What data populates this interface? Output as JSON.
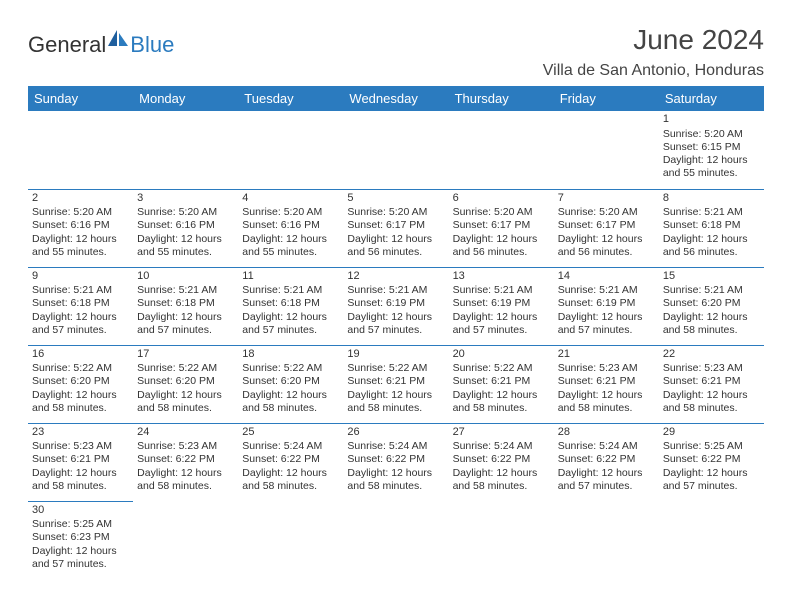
{
  "brand": {
    "part1": "General",
    "part2": "Blue"
  },
  "title": "June 2024",
  "location": "Villa de San Antonio, Honduras",
  "colors": {
    "accent": "#2b7bbf",
    "text": "#333333",
    "bg": "#ffffff"
  },
  "day_headers": [
    "Sunday",
    "Monday",
    "Tuesday",
    "Wednesday",
    "Thursday",
    "Friday",
    "Saturday"
  ],
  "weeks": [
    [
      null,
      null,
      null,
      null,
      null,
      null,
      {
        "n": "1",
        "sr": "Sunrise: 5:20 AM",
        "ss": "Sunset: 6:15 PM",
        "d1": "Daylight: 12 hours",
        "d2": "and 55 minutes."
      }
    ],
    [
      {
        "n": "2",
        "sr": "Sunrise: 5:20 AM",
        "ss": "Sunset: 6:16 PM",
        "d1": "Daylight: 12 hours",
        "d2": "and 55 minutes."
      },
      {
        "n": "3",
        "sr": "Sunrise: 5:20 AM",
        "ss": "Sunset: 6:16 PM",
        "d1": "Daylight: 12 hours",
        "d2": "and 55 minutes."
      },
      {
        "n": "4",
        "sr": "Sunrise: 5:20 AM",
        "ss": "Sunset: 6:16 PM",
        "d1": "Daylight: 12 hours",
        "d2": "and 55 minutes."
      },
      {
        "n": "5",
        "sr": "Sunrise: 5:20 AM",
        "ss": "Sunset: 6:17 PM",
        "d1": "Daylight: 12 hours",
        "d2": "and 56 minutes."
      },
      {
        "n": "6",
        "sr": "Sunrise: 5:20 AM",
        "ss": "Sunset: 6:17 PM",
        "d1": "Daylight: 12 hours",
        "d2": "and 56 minutes."
      },
      {
        "n": "7",
        "sr": "Sunrise: 5:20 AM",
        "ss": "Sunset: 6:17 PM",
        "d1": "Daylight: 12 hours",
        "d2": "and 56 minutes."
      },
      {
        "n": "8",
        "sr": "Sunrise: 5:21 AM",
        "ss": "Sunset: 6:18 PM",
        "d1": "Daylight: 12 hours",
        "d2": "and 56 minutes."
      }
    ],
    [
      {
        "n": "9",
        "sr": "Sunrise: 5:21 AM",
        "ss": "Sunset: 6:18 PM",
        "d1": "Daylight: 12 hours",
        "d2": "and 57 minutes."
      },
      {
        "n": "10",
        "sr": "Sunrise: 5:21 AM",
        "ss": "Sunset: 6:18 PM",
        "d1": "Daylight: 12 hours",
        "d2": "and 57 minutes."
      },
      {
        "n": "11",
        "sr": "Sunrise: 5:21 AM",
        "ss": "Sunset: 6:18 PM",
        "d1": "Daylight: 12 hours",
        "d2": "and 57 minutes."
      },
      {
        "n": "12",
        "sr": "Sunrise: 5:21 AM",
        "ss": "Sunset: 6:19 PM",
        "d1": "Daylight: 12 hours",
        "d2": "and 57 minutes."
      },
      {
        "n": "13",
        "sr": "Sunrise: 5:21 AM",
        "ss": "Sunset: 6:19 PM",
        "d1": "Daylight: 12 hours",
        "d2": "and 57 minutes."
      },
      {
        "n": "14",
        "sr": "Sunrise: 5:21 AM",
        "ss": "Sunset: 6:19 PM",
        "d1": "Daylight: 12 hours",
        "d2": "and 57 minutes."
      },
      {
        "n": "15",
        "sr": "Sunrise: 5:21 AM",
        "ss": "Sunset: 6:20 PM",
        "d1": "Daylight: 12 hours",
        "d2": "and 58 minutes."
      }
    ],
    [
      {
        "n": "16",
        "sr": "Sunrise: 5:22 AM",
        "ss": "Sunset: 6:20 PM",
        "d1": "Daylight: 12 hours",
        "d2": "and 58 minutes."
      },
      {
        "n": "17",
        "sr": "Sunrise: 5:22 AM",
        "ss": "Sunset: 6:20 PM",
        "d1": "Daylight: 12 hours",
        "d2": "and 58 minutes."
      },
      {
        "n": "18",
        "sr": "Sunrise: 5:22 AM",
        "ss": "Sunset: 6:20 PM",
        "d1": "Daylight: 12 hours",
        "d2": "and 58 minutes."
      },
      {
        "n": "19",
        "sr": "Sunrise: 5:22 AM",
        "ss": "Sunset: 6:21 PM",
        "d1": "Daylight: 12 hours",
        "d2": "and 58 minutes."
      },
      {
        "n": "20",
        "sr": "Sunrise: 5:22 AM",
        "ss": "Sunset: 6:21 PM",
        "d1": "Daylight: 12 hours",
        "d2": "and 58 minutes."
      },
      {
        "n": "21",
        "sr": "Sunrise: 5:23 AM",
        "ss": "Sunset: 6:21 PM",
        "d1": "Daylight: 12 hours",
        "d2": "and 58 minutes."
      },
      {
        "n": "22",
        "sr": "Sunrise: 5:23 AM",
        "ss": "Sunset: 6:21 PM",
        "d1": "Daylight: 12 hours",
        "d2": "and 58 minutes."
      }
    ],
    [
      {
        "n": "23",
        "sr": "Sunrise: 5:23 AM",
        "ss": "Sunset: 6:21 PM",
        "d1": "Daylight: 12 hours",
        "d2": "and 58 minutes."
      },
      {
        "n": "24",
        "sr": "Sunrise: 5:23 AM",
        "ss": "Sunset: 6:22 PM",
        "d1": "Daylight: 12 hours",
        "d2": "and 58 minutes."
      },
      {
        "n": "25",
        "sr": "Sunrise: 5:24 AM",
        "ss": "Sunset: 6:22 PM",
        "d1": "Daylight: 12 hours",
        "d2": "and 58 minutes."
      },
      {
        "n": "26",
        "sr": "Sunrise: 5:24 AM",
        "ss": "Sunset: 6:22 PM",
        "d1": "Daylight: 12 hours",
        "d2": "and 58 minutes."
      },
      {
        "n": "27",
        "sr": "Sunrise: 5:24 AM",
        "ss": "Sunset: 6:22 PM",
        "d1": "Daylight: 12 hours",
        "d2": "and 58 minutes."
      },
      {
        "n": "28",
        "sr": "Sunrise: 5:24 AM",
        "ss": "Sunset: 6:22 PM",
        "d1": "Daylight: 12 hours",
        "d2": "and 57 minutes."
      },
      {
        "n": "29",
        "sr": "Sunrise: 5:25 AM",
        "ss": "Sunset: 6:22 PM",
        "d1": "Daylight: 12 hours",
        "d2": "and 57 minutes."
      }
    ],
    [
      {
        "n": "30",
        "sr": "Sunrise: 5:25 AM",
        "ss": "Sunset: 6:23 PM",
        "d1": "Daylight: 12 hours",
        "d2": "and 57 minutes."
      },
      null,
      null,
      null,
      null,
      null,
      null
    ]
  ]
}
